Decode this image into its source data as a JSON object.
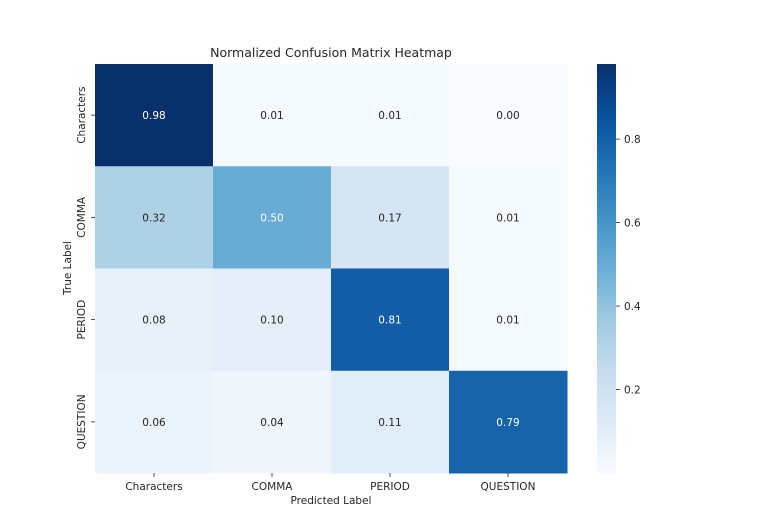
{
  "chart_data": {
    "type": "heatmap",
    "title": "Normalized Confusion Matrix Heatmap",
    "xlabel": "Predicted Label",
    "ylabel": "True Label",
    "x_categories": [
      "Characters",
      "COMMA",
      "PERIOD",
      "QUESTION"
    ],
    "y_categories": [
      "Characters",
      "COMMA",
      "PERIOD",
      "QUESTION"
    ],
    "values": [
      [
        0.98,
        0.01,
        0.01,
        0.0
      ],
      [
        0.32,
        0.5,
        0.17,
        0.01
      ],
      [
        0.08,
        0.1,
        0.81,
        0.01
      ],
      [
        0.06,
        0.04,
        0.11,
        0.79
      ]
    ],
    "colormap": "Blues",
    "colorbar": {
      "range": [
        0.0,
        0.98
      ],
      "ticks": [
        0.2,
        0.4,
        0.6,
        0.8
      ],
      "tick_labels": [
        "0.2",
        "0.4",
        "0.6",
        "0.8"
      ]
    },
    "annot_dark_color": "#262626",
    "annot_light_color": "#ffffff"
  }
}
